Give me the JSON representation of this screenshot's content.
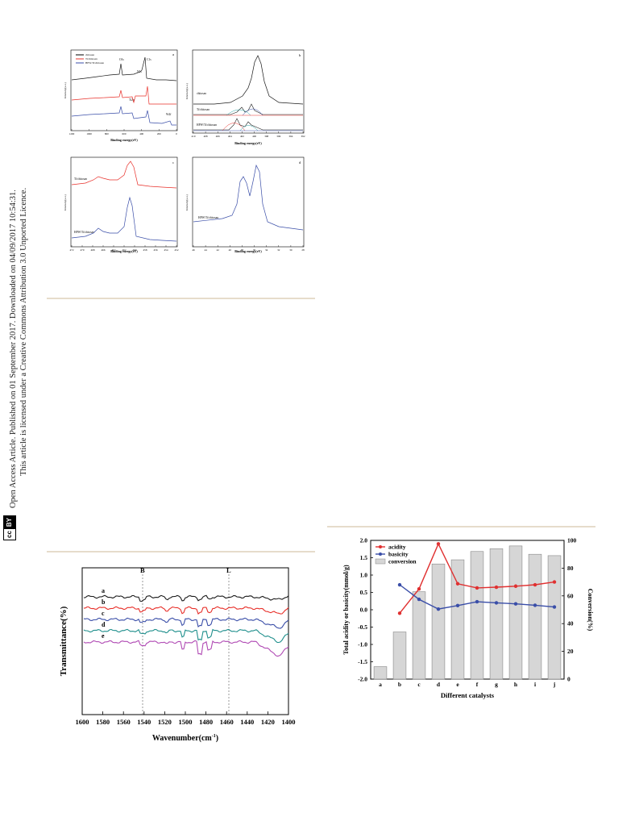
{
  "sidebar": {
    "line1": "Open Access Article. Published on 01 September 2017. Downloaded on 04/09/2017 10:54:31.",
    "line2": "This article is licensed under a Creative Commons Attribution 3.0 Unported Licence.",
    "badge_cc": "cc",
    "badge_by": "BY"
  },
  "xps_figure": {
    "panel_a": {
      "letter": "a",
      "ylabel": "Intensity(a.u.)",
      "xlabel": "Binding energy(eV)",
      "xticks": [
        "1200",
        "1000",
        "800",
        "600",
        "400",
        "200",
        "0"
      ],
      "legend": [
        "chitosan",
        "Ti/chitosan",
        "HPW/Ti/chitosan"
      ],
      "peaks": [
        "O1s",
        "C1s",
        "N1s",
        "Ti2p",
        "W4f"
      ]
    },
    "panel_b": {
      "letter": "b",
      "ylabel": "Intensity(a.u.)",
      "xlabel": "Binding energy(eV)",
      "xticks": [
        "410",
        "408",
        "406",
        "404",
        "402",
        "400",
        "398",
        "396",
        "394",
        "392"
      ],
      "labels": [
        "chitosan",
        "Ti/chitosan",
        "HPW/Ti/chitosan"
      ]
    },
    "panel_c": {
      "letter": "c",
      "ylabel": "Intensity(a.u.)",
      "xlabel": "Binding energy(eV)",
      "xticks": [
        "472",
        "470",
        "468",
        "466",
        "464",
        "462",
        "460",
        "458",
        "456",
        "454",
        "452"
      ],
      "labels": [
        "Ti/chitosan",
        "HPW/Ti/chitosan"
      ]
    },
    "panel_d": {
      "letter": "d",
      "ylabel": "Intensity(a.u.)",
      "xlabel": "Binding energy(eV)",
      "xticks": [
        "46",
        "44",
        "42",
        "40",
        "38",
        "36",
        "34",
        "32",
        "30",
        "28"
      ],
      "labels": [
        "HPW/Ti/chitosan"
      ]
    }
  },
  "ir_figure": {
    "ylabel": "Transmittance(%)",
    "xlabel": "Wavenumber(cm",
    "xlabel_sup": "-1",
    "xlabel_close": ")",
    "xticks": [
      "1600",
      "1580",
      "1560",
      "1540",
      "1520",
      "1500",
      "1480",
      "1460",
      "1440",
      "1420",
      "1400"
    ],
    "markers": [
      "B",
      "L"
    ],
    "curves": [
      "a",
      "b",
      "c",
      "d",
      "e"
    ],
    "colors": [
      "#1a1a1a",
      "#e8302a",
      "#3a4ea8",
      "#1f8f8c",
      "#b04ab4"
    ]
  },
  "chart_data": {
    "type": "bar",
    "xlabel": "Different catalysts",
    "ylabel": "Total acidity or basicity(mmol/g)",
    "y2label": "Conversion(%)",
    "categories": [
      "a",
      "b",
      "c",
      "d",
      "e",
      "f",
      "g",
      "h",
      "i",
      "j"
    ],
    "ylim": [
      -2.0,
      2.0
    ],
    "y2lim": [
      0,
      100
    ],
    "yticks": [
      "2.0",
      "1.5",
      "1.0",
      "0.5",
      "0.0",
      "-0.5",
      "-1.0",
      "-1.5",
      "-2.0"
    ],
    "y2ticks": [
      "100",
      "80",
      "60",
      "40",
      "20",
      "0"
    ],
    "legend": [
      "acidity",
      "basicity",
      "conversion"
    ],
    "legend_position": "top-left",
    "series": [
      {
        "name": "acidity",
        "axis": "left",
        "type": "line",
        "color": "#e03030",
        "values": [
          null,
          -0.1,
          0.6,
          1.9,
          0.75,
          0.63,
          0.65,
          0.68,
          0.72,
          0.8
        ]
      },
      {
        "name": "basicity",
        "axis": "left",
        "type": "line",
        "color": "#3a4ea8",
        "values": [
          null,
          0.72,
          0.3,
          0.02,
          0.12,
          0.23,
          0.2,
          0.17,
          0.13,
          0.08
        ]
      },
      {
        "name": "conversion",
        "axis": "right",
        "type": "bar",
        "color": "#d6d6d6",
        "values": [
          9,
          34,
          63,
          83,
          86,
          92,
          94,
          96,
          90,
          89
        ]
      }
    ]
  }
}
